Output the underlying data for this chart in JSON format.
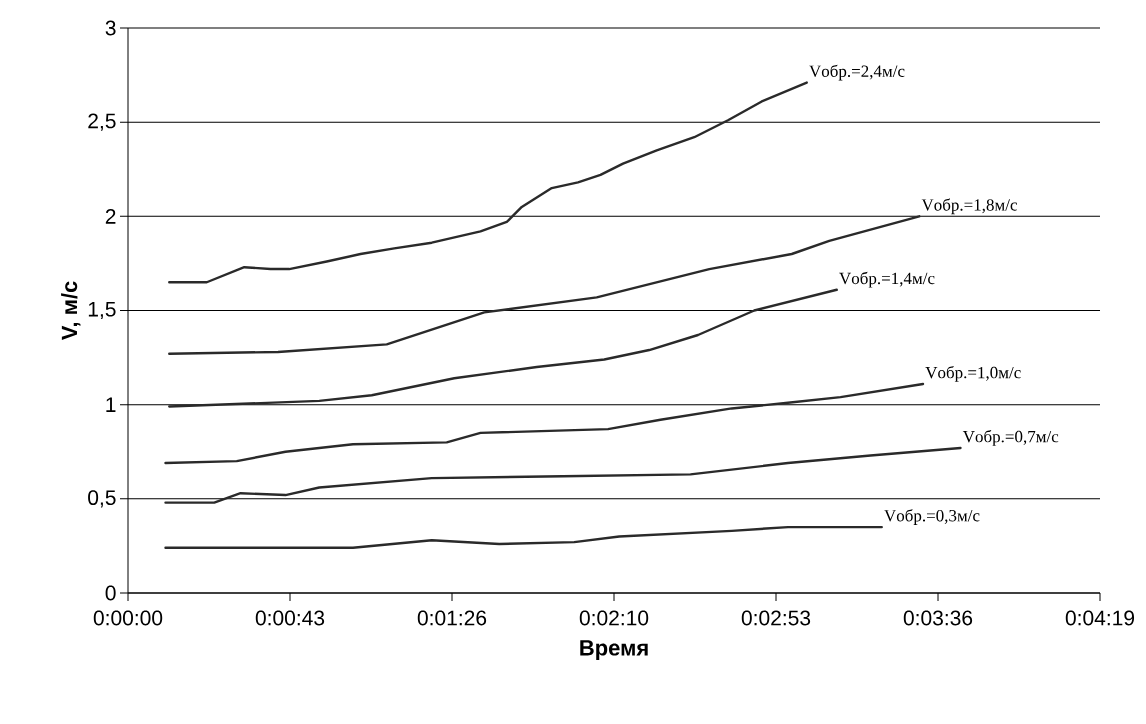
{
  "chart_data": {
    "type": "line",
    "xlabel": "Время",
    "ylabel": "V, м/с",
    "xlim": [
      0,
      259.2
    ],
    "ylim": [
      0,
      3
    ],
    "xticks": [
      {
        "value": 0,
        "label": "0:00:00"
      },
      {
        "value": 43.2,
        "label": "0:00:43"
      },
      {
        "value": 86.4,
        "label": "0:01:26"
      },
      {
        "value": 129.6,
        "label": "0:02:10"
      },
      {
        "value": 172.8,
        "label": "0:02:53"
      },
      {
        "value": 216,
        "label": "0:03:36"
      },
      {
        "value": 259.2,
        "label": "0:04:19"
      }
    ],
    "yticks": [
      0,
      {
        "value": 0.5,
        "label": "0,5"
      },
      1,
      {
        "value": 1.5,
        "label": "1,5"
      },
      2,
      {
        "value": 2.5,
        "label": "2,5"
      },
      3
    ],
    "grid": "y",
    "series": [
      {
        "name": "Vобр.=2,4м/с",
        "color": "#2a2a2a",
        "x": [
          11,
          21,
          31,
          38,
          43,
          53,
          62,
          71,
          81,
          94,
          101,
          105,
          113,
          120,
          126,
          132,
          141,
          151,
          160,
          169,
          181
        ],
        "values": [
          1.65,
          1.65,
          1.73,
          1.72,
          1.72,
          1.76,
          1.8,
          1.83,
          1.86,
          1.92,
          1.97,
          2.05,
          2.15,
          2.18,
          2.22,
          2.28,
          2.35,
          2.42,
          2.51,
          2.61,
          2.71
        ]
      },
      {
        "name": "Vобр.=1,8м/с",
        "color": "#2a2a2a",
        "x": [
          11,
          40,
          69,
          95,
          125,
          155,
          177,
          187,
          211
        ],
        "values": [
          1.27,
          1.28,
          1.32,
          1.49,
          1.57,
          1.72,
          1.8,
          1.87,
          2.0
        ]
      },
      {
        "name": "Vобр.=1,4м/с",
        "color": "#2a2a2a",
        "x": [
          11,
          51,
          65,
          87,
          109,
          127,
          139,
          152,
          167,
          189
        ],
        "values": [
          0.99,
          1.02,
          1.05,
          1.14,
          1.2,
          1.24,
          1.29,
          1.37,
          1.5,
          1.61
        ]
      },
      {
        "name": "Vобр.=1,0м/с",
        "color": "#2a2a2a",
        "x": [
          10,
          29,
          42,
          60,
          85,
          94,
          128,
          142,
          161,
          176,
          190,
          212
        ],
        "values": [
          0.69,
          0.7,
          0.75,
          0.79,
          0.8,
          0.85,
          0.87,
          0.92,
          0.98,
          1.01,
          1.04,
          1.11
        ]
      },
      {
        "name": "Vобр.=0,7м/с",
        "color": "#2a2a2a",
        "x": [
          10,
          23,
          30,
          42,
          51,
          81,
          116,
          150,
          176,
          198,
          222
        ],
        "values": [
          0.48,
          0.48,
          0.53,
          0.52,
          0.56,
          0.61,
          0.62,
          0.63,
          0.69,
          0.73,
          0.77
        ]
      },
      {
        "name": "Vобр.=0,3м/с",
        "color": "#2a2a2a",
        "x": [
          10,
          42,
          60,
          81,
          99,
          119,
          131,
          161,
          176,
          201
        ],
        "values": [
          0.24,
          0.24,
          0.24,
          0.28,
          0.26,
          0.27,
          0.3,
          0.33,
          0.35,
          0.35
        ]
      }
    ]
  }
}
